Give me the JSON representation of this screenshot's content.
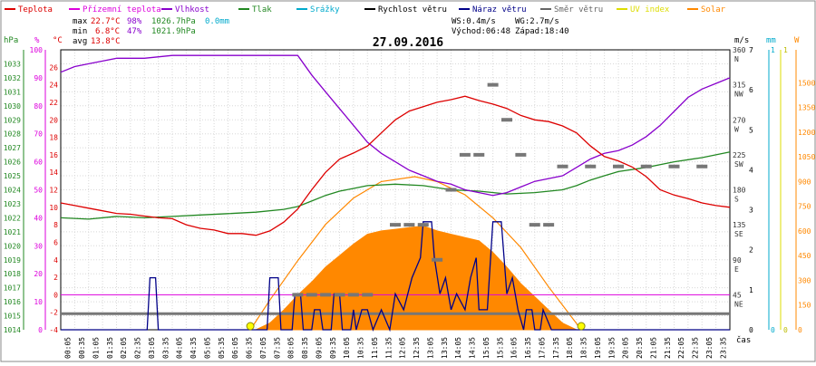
{
  "chart_data": {
    "type": "line",
    "title": "27.09.2016",
    "x_unit_label": "čas",
    "x_tick_labels": [
      "00:05",
      "00:35",
      "01:05",
      "01:35",
      "02:05",
      "02:35",
      "03:05",
      "03:35",
      "04:05",
      "04:35",
      "05:05",
      "05:35",
      "06:05",
      "06:35",
      "07:05",
      "07:35",
      "08:05",
      "08:35",
      "09:05",
      "09:35",
      "10:05",
      "10:35",
      "11:05",
      "11:35",
      "12:05",
      "12:35",
      "13:05",
      "13:35",
      "14:05",
      "14:35",
      "15:05",
      "15:35",
      "16:05",
      "16:35",
      "17:05",
      "17:35",
      "18:05",
      "18:35",
      "19:05",
      "19:35",
      "20:05",
      "20:35",
      "21:05",
      "21:35",
      "22:05",
      "22:35",
      "23:05",
      "23:35"
    ],
    "x_range_hours": [
      0,
      24
    ],
    "legend": [
      {
        "name": "Teplota",
        "color": "#dd0000"
      },
      {
        "name": "Přízemní teplota",
        "color": "#dd00dd"
      },
      {
        "name": "Vlhkost",
        "color": "#8800cc"
      },
      {
        "name": "Tlak",
        "color": "#228822"
      },
      {
        "name": "Srážky",
        "color": "#00aacc"
      },
      {
        "name": "Rychlost větru",
        "color": "#000000"
      },
      {
        "name": "Náraz větru",
        "color": "#000088"
      },
      {
        "name": "Směr větru",
        "color": "#666666"
      },
      {
        "name": "UV index",
        "color": "#dddd00"
      },
      {
        "name": "Solar",
        "color": "#ff8800"
      }
    ],
    "stats": {
      "max": {
        "label": "max",
        "temp": "22.7°C",
        "hum": "98%",
        "press": "1026.7hPa",
        "rain": "0.0mm"
      },
      "min": {
        "label": "min",
        "temp": "6.8°C",
        "hum": "47%",
        "press": "1021.9hPa"
      },
      "avg": {
        "label": "avg",
        "temp": "13.8°C"
      }
    },
    "info": {
      "ws": "WS:0.4m/s",
      "wg": "WG:2.7m/s",
      "sunrise": "Východ:06:48",
      "sunset": "Západ:18:40"
    },
    "axes": {
      "pressure": {
        "unit": "hPa",
        "range": [
          1014,
          1034
        ],
        "ticks": [
          "1033",
          "1032",
          "1031",
          "1030",
          "1029",
          "1028",
          "1027",
          "1026",
          "1025",
          "1024",
          "1023",
          "1022",
          "1021",
          "1020",
          "1019",
          "1018",
          "1017",
          "1016",
          "1015",
          "1014"
        ]
      },
      "humidity": {
        "unit": "%",
        "range": [
          0,
          100
        ],
        "ticks": [
          "100",
          "90",
          "80",
          "70",
          "60",
          "50",
          "40",
          "30",
          "20",
          "10",
          "0"
        ]
      },
      "temperature": {
        "unit": "°C",
        "range": [
          -4,
          28
        ],
        "ticks": [
          "26",
          "24",
          "22",
          "20",
          "18",
          "16",
          "14",
          "12",
          "10",
          "8",
          "6",
          "4",
          "2",
          "0",
          "-2",
          "-4"
        ]
      },
      "wind": {
        "unit": "m/s",
        "range": [
          0,
          7
        ],
        "ticks": [
          "7",
          "6",
          "5",
          "4",
          "3",
          "2",
          "1",
          "0"
        ]
      },
      "direction": {
        "range": [
          0,
          360
        ],
        "ticks": [
          {
            "deg": "360",
            "dir": "N"
          },
          {
            "deg": "315",
            "dir": "NW"
          },
          {
            "deg": "270",
            "dir": "W"
          },
          {
            "deg": "225",
            "dir": "SW"
          },
          {
            "deg": "180",
            "dir": "S"
          },
          {
            "deg": "135",
            "dir": "SE"
          },
          {
            "deg": "90",
            "dir": "E"
          },
          {
            "deg": "45",
            "dir": "NE"
          }
        ]
      },
      "rain": {
        "unit": "mm",
        "range": [
          0,
          1
        ],
        "ticks": [
          "1",
          "0"
        ]
      },
      "uv": {
        "range": [
          0,
          1
        ],
        "ticks": [
          "1",
          "0"
        ]
      },
      "solar": {
        "unit": "W",
        "range": [
          0,
          1700
        ],
        "ticks": [
          "1500",
          "1350",
          "1200",
          "1050",
          "900",
          "750",
          "600",
          "450",
          "300",
          "150",
          "0"
        ]
      }
    },
    "series": [
      {
        "name": "Teplota",
        "axis": "temperature",
        "points": [
          [
            0,
            10.5
          ],
          [
            0.5,
            10.2
          ],
          [
            1,
            9.9
          ],
          [
            1.5,
            9.6
          ],
          [
            2,
            9.3
          ],
          [
            2.5,
            9.2
          ],
          [
            3,
            9.0
          ],
          [
            3.5,
            8.8
          ],
          [
            4,
            8.7
          ],
          [
            4.5,
            8.0
          ],
          [
            5,
            7.6
          ],
          [
            5.5,
            7.4
          ],
          [
            6,
            7.0
          ],
          [
            6.5,
            7.0
          ],
          [
            7,
            6.8
          ],
          [
            7.5,
            7.3
          ],
          [
            8,
            8.3
          ],
          [
            8.5,
            9.8
          ],
          [
            9,
            12.0
          ],
          [
            9.5,
            14.0
          ],
          [
            10,
            15.5
          ],
          [
            10.5,
            16.2
          ],
          [
            11,
            17.0
          ],
          [
            11.5,
            18.5
          ],
          [
            12,
            20.0
          ],
          [
            12.5,
            21.0
          ],
          [
            13,
            21.5
          ],
          [
            13.5,
            22.0
          ],
          [
            14,
            22.3
          ],
          [
            14.5,
            22.7
          ],
          [
            15,
            22.2
          ],
          [
            15.5,
            21.8
          ],
          [
            16,
            21.3
          ],
          [
            16.5,
            20.5
          ],
          [
            17,
            20.0
          ],
          [
            17.5,
            19.8
          ],
          [
            18,
            19.3
          ],
          [
            18.5,
            18.5
          ],
          [
            19,
            17.0
          ],
          [
            19.5,
            15.8
          ],
          [
            20,
            15.3
          ],
          [
            20.5,
            14.6
          ],
          [
            21,
            13.5
          ],
          [
            21.5,
            12.0
          ],
          [
            22,
            11.4
          ],
          [
            22.5,
            11.0
          ],
          [
            23,
            10.5
          ],
          [
            23.5,
            10.2
          ],
          [
            24,
            10.0
          ]
        ]
      },
      {
        "name": "Vlhkost",
        "axis": "humidity",
        "points": [
          [
            0,
            92
          ],
          [
            0.5,
            94
          ],
          [
            1,
            95
          ],
          [
            1.5,
            96
          ],
          [
            2,
            97
          ],
          [
            3,
            97
          ],
          [
            4,
            98
          ],
          [
            5,
            98
          ],
          [
            6,
            98
          ],
          [
            7,
            98
          ],
          [
            8.5,
            98
          ],
          [
            9,
            91
          ],
          [
            9.5,
            85
          ],
          [
            10,
            79
          ],
          [
            10.5,
            73
          ],
          [
            11,
            67
          ],
          [
            11.5,
            63
          ],
          [
            12,
            60
          ],
          [
            12.5,
            57
          ],
          [
            13,
            55
          ],
          [
            13.5,
            53
          ],
          [
            14,
            52
          ],
          [
            14.5,
            50
          ],
          [
            15,
            49
          ],
          [
            15.5,
            48
          ],
          [
            16,
            49
          ],
          [
            16.5,
            51
          ],
          [
            17,
            53
          ],
          [
            17.5,
            54
          ],
          [
            18,
            55
          ],
          [
            18.5,
            58
          ],
          [
            19,
            61
          ],
          [
            19.5,
            63
          ],
          [
            20,
            64
          ],
          [
            20.5,
            66
          ],
          [
            21,
            69
          ],
          [
            21.5,
            73
          ],
          [
            22,
            78
          ],
          [
            22.5,
            83
          ],
          [
            23,
            86
          ],
          [
            23.5,
            88
          ],
          [
            24,
            90
          ]
        ]
      },
      {
        "name": "Tlak",
        "axis": "pressure",
        "points": [
          [
            0,
            1022.0
          ],
          [
            1,
            1021.9
          ],
          [
            2,
            1022.1
          ],
          [
            3,
            1022.0
          ],
          [
            4,
            1022.1
          ],
          [
            5,
            1022.2
          ],
          [
            6,
            1022.3
          ],
          [
            7,
            1022.4
          ],
          [
            8,
            1022.6
          ],
          [
            8.5,
            1022.8
          ],
          [
            9,
            1023.2
          ],
          [
            9.5,
            1023.6
          ],
          [
            10,
            1023.9
          ],
          [
            10.5,
            1024.1
          ],
          [
            11,
            1024.3
          ],
          [
            12,
            1024.4
          ],
          [
            13,
            1024.3
          ],
          [
            14,
            1024.0
          ],
          [
            15,
            1023.9
          ],
          [
            16,
            1023.7
          ],
          [
            17,
            1023.8
          ],
          [
            18,
            1024.0
          ],
          [
            18.5,
            1024.3
          ],
          [
            19,
            1024.7
          ],
          [
            19.5,
            1025.0
          ],
          [
            20,
            1025.3
          ],
          [
            21,
            1025.6
          ],
          [
            21.5,
            1025.8
          ],
          [
            22,
            1026.0
          ],
          [
            23,
            1026.3
          ],
          [
            23.5,
            1026.5
          ],
          [
            24,
            1026.7
          ]
        ]
      },
      {
        "name": "Přízemní teplota",
        "axis": "temperature",
        "points": [
          [
            0,
            0.0
          ],
          [
            24,
            0.0
          ]
        ]
      },
      {
        "name": "Rychlost větru",
        "axis": "wind",
        "points": [
          [
            0,
            0.4
          ],
          [
            24,
            0.4
          ]
        ]
      },
      {
        "name": "Náraz větru",
        "axis": "wind",
        "points": [
          [
            0,
            0
          ],
          [
            3.1,
            0
          ],
          [
            3.2,
            1.3
          ],
          [
            3.4,
            1.3
          ],
          [
            3.5,
            0
          ],
          [
            7.4,
            0
          ],
          [
            7.5,
            1.3
          ],
          [
            7.8,
            1.3
          ],
          [
            7.9,
            0
          ],
          [
            8.3,
            0
          ],
          [
            8.4,
            0.9
          ],
          [
            8.6,
            0.9
          ],
          [
            8.7,
            0
          ],
          [
            9.0,
            0
          ],
          [
            9.1,
            0.5
          ],
          [
            9.3,
            0.5
          ],
          [
            9.4,
            0
          ],
          [
            9.7,
            0
          ],
          [
            9.8,
            0.9
          ],
          [
            10.0,
            0.9
          ],
          [
            10.1,
            0
          ],
          [
            10.4,
            0
          ],
          [
            10.5,
            0.5
          ],
          [
            10.6,
            0
          ],
          [
            10.8,
            0.5
          ],
          [
            11.0,
            0.5
          ],
          [
            11.2,
            0
          ],
          [
            11.5,
            0.5
          ],
          [
            11.8,
            0
          ],
          [
            12.0,
            0.9
          ],
          [
            12.3,
            0.5
          ],
          [
            12.6,
            1.3
          ],
          [
            12.9,
            1.8
          ],
          [
            13.0,
            2.7
          ],
          [
            13.3,
            2.7
          ],
          [
            13.4,
            1.8
          ],
          [
            13.6,
            0.9
          ],
          [
            13.8,
            1.3
          ],
          [
            14.0,
            0.5
          ],
          [
            14.2,
            0.9
          ],
          [
            14.5,
            0.5
          ],
          [
            14.7,
            1.3
          ],
          [
            14.9,
            1.8
          ],
          [
            15.0,
            0.5
          ],
          [
            15.3,
            0.5
          ],
          [
            15.5,
            2.7
          ],
          [
            15.8,
            2.7
          ],
          [
            16.0,
            0.9
          ],
          [
            16.2,
            1.3
          ],
          [
            16.4,
            0.5
          ],
          [
            16.6,
            0
          ],
          [
            16.7,
            0.5
          ],
          [
            16.9,
            0.5
          ],
          [
            17.0,
            0
          ],
          [
            17.2,
            0
          ],
          [
            17.3,
            0.5
          ],
          [
            17.6,
            0
          ],
          [
            24,
            0
          ]
        ]
      },
      {
        "name": "Solar",
        "axis": "solar",
        "points": [
          [
            7,
            0
          ],
          [
            7.5,
            40
          ],
          [
            8,
            120
          ],
          [
            8.5,
            210
          ],
          [
            9,
            290
          ],
          [
            9.5,
            380
          ],
          [
            10,
            450
          ],
          [
            10.5,
            520
          ],
          [
            11,
            580
          ],
          [
            11.5,
            600
          ],
          [
            12,
            610
          ],
          [
            12.5,
            620
          ],
          [
            13,
            630
          ],
          [
            13.5,
            600
          ],
          [
            14,
            580
          ],
          [
            14.5,
            560
          ],
          [
            15,
            540
          ],
          [
            15.5,
            470
          ],
          [
            16,
            380
          ],
          [
            16.5,
            280
          ],
          [
            17,
            200
          ],
          [
            17.5,
            120
          ],
          [
            18,
            40
          ],
          [
            18.5,
            0
          ]
        ]
      },
      {
        "name": "Solar max",
        "axis": "solar",
        "points": [
          [
            6.8,
            0
          ],
          [
            7.5,
            180
          ],
          [
            8.5,
            420
          ],
          [
            9.5,
            640
          ],
          [
            10.5,
            800
          ],
          [
            11.5,
            900
          ],
          [
            12.7,
            930
          ],
          [
            13.5,
            900
          ],
          [
            14.5,
            820
          ],
          [
            15.5,
            680
          ],
          [
            16.5,
            500
          ],
          [
            17.5,
            260
          ],
          [
            18.67,
            0
          ]
        ]
      }
    ],
    "wind_direction_samples": [
      [
        8.5,
        45
      ],
      [
        9,
        45
      ],
      [
        9.5,
        45
      ],
      [
        10,
        45
      ],
      [
        10.5,
        45
      ],
      [
        11,
        45
      ],
      [
        12,
        135
      ],
      [
        12.5,
        135
      ],
      [
        13,
        135
      ],
      [
        13.5,
        90
      ],
      [
        14,
        180
      ],
      [
        14.5,
        225
      ],
      [
        15,
        225
      ],
      [
        15.5,
        315
      ],
      [
        16,
        270
      ],
      [
        16.5,
        225
      ],
      [
        17,
        135
      ],
      [
        17.5,
        135
      ],
      [
        18,
        210
      ],
      [
        19,
        210
      ],
      [
        20,
        210
      ],
      [
        21,
        210
      ],
      [
        22,
        210
      ],
      [
        23,
        210
      ]
    ],
    "uv_markers": [
      6.8,
      18.67
    ]
  }
}
